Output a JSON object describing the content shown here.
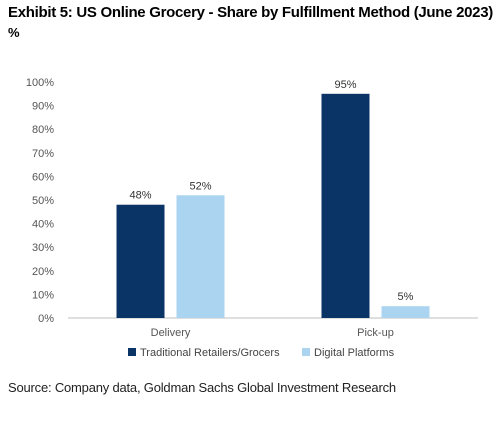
{
  "header": {
    "title": "Exhibit 5: US Online Grocery - Share by Fulfillment Method (June 2023)",
    "unit": "%"
  },
  "footer": {
    "source": "Source: Company data, Goldman Sachs Global Investment Research"
  },
  "chart_data": {
    "type": "bar",
    "title": "Exhibit 5: US Online Grocery - Share by Fulfillment Method (June 2023)",
    "subtitle": "%",
    "categories": [
      "Delivery",
      "Pick-up"
    ],
    "series": [
      {
        "name": "Traditional Retailers/Grocers",
        "values": [
          48,
          95
        ],
        "labels": [
          "48%",
          "95%"
        ],
        "color": "#0b3466"
      },
      {
        "name": "Digital Platforms",
        "values": [
          52,
          5
        ],
        "labels": [
          "52%",
          "5%"
        ],
        "color": "#abd4f0"
      }
    ],
    "yticks": [
      "0%",
      "10%",
      "20%",
      "30%",
      "40%",
      "50%",
      "60%",
      "70%",
      "80%",
      "90%",
      "100%"
    ],
    "ylim": [
      0,
      100
    ],
    "grid": false,
    "legend": "bottom",
    "xlabel": "",
    "ylabel": ""
  }
}
